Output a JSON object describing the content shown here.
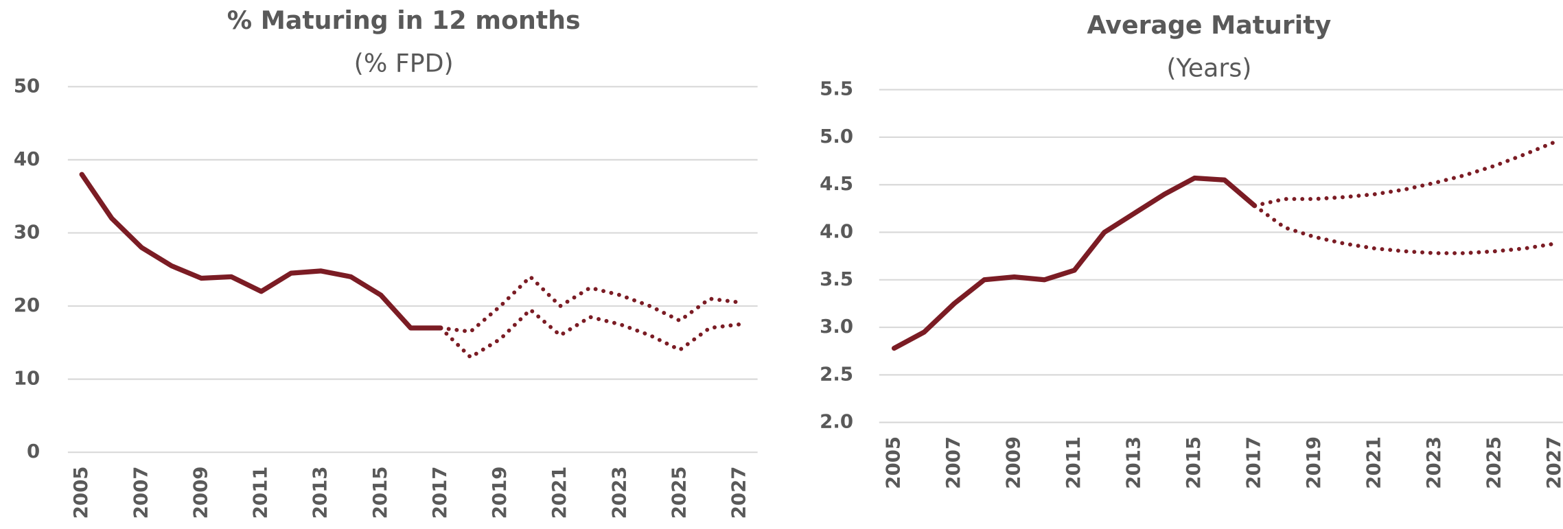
{
  "chart_data": [
    {
      "type": "line",
      "title": "% Maturing in 12 months",
      "subtitle": "(% FPD)",
      "x": [
        2005,
        2006,
        2007,
        2008,
        2009,
        2010,
        2011,
        2012,
        2013,
        2014,
        2015,
        2016,
        2017,
        2018,
        2019,
        2020,
        2021,
        2022,
        2023,
        2024,
        2025,
        2026,
        2027
      ],
      "series": [
        {
          "color": "#7b1c24",
          "style": "solid",
          "values": [
            38,
            32,
            28,
            25.5,
            23.8,
            24,
            22,
            24.5,
            24.8,
            24,
            21.5,
            17,
            17,
            null,
            null,
            null,
            null,
            null,
            null,
            null,
            null,
            null,
            null
          ]
        },
        {
          "color": "#7b1c24",
          "style": "dotted",
          "values": [
            null,
            null,
            null,
            null,
            null,
            null,
            null,
            null,
            null,
            null,
            null,
            null,
            17,
            16.5,
            20,
            24,
            20,
            22.5,
            21.5,
            20,
            18,
            21,
            20.5
          ]
        },
        {
          "color": "#7b1c24",
          "style": "dotted",
          "values": [
            null,
            null,
            null,
            null,
            null,
            null,
            null,
            null,
            null,
            null,
            null,
            null,
            17,
            13,
            15.5,
            19.5,
            16,
            18.5,
            17.5,
            16,
            14,
            17,
            17.5
          ]
        }
      ],
      "xlim": [
        2005,
        2027
      ],
      "xticks": [
        2005,
        2007,
        2009,
        2011,
        2013,
        2015,
        2017,
        2019,
        2021,
        2023,
        2025,
        2027
      ],
      "ylim": [
        0,
        50
      ],
      "yticks": [
        0,
        10,
        20,
        30,
        40,
        50
      ],
      "grid": true
    },
    {
      "type": "line",
      "title": "Average Maturity",
      "subtitle": "(Years)",
      "x": [
        2005,
        2006,
        2007,
        2008,
        2009,
        2010,
        2011,
        2012,
        2013,
        2014,
        2015,
        2016,
        2017,
        2018,
        2019,
        2020,
        2021,
        2022,
        2023,
        2024,
        2025,
        2026,
        2027
      ],
      "series": [
        {
          "color": "#7b1c24",
          "style": "solid",
          "values": [
            2.78,
            2.95,
            3.25,
            3.5,
            3.53,
            3.5,
            3.6,
            4.0,
            4.2,
            4.4,
            4.57,
            4.55,
            4.28,
            null,
            null,
            null,
            null,
            null,
            null,
            null,
            null,
            null,
            null
          ]
        },
        {
          "color": "#7b1c24",
          "style": "dotted",
          "values": [
            null,
            null,
            null,
            null,
            null,
            null,
            null,
            null,
            null,
            null,
            null,
            null,
            4.28,
            4.35,
            4.35,
            4.37,
            4.4,
            4.45,
            4.52,
            4.6,
            4.7,
            4.82,
            4.95
          ]
        },
        {
          "color": "#7b1c24",
          "style": "dotted",
          "values": [
            null,
            null,
            null,
            null,
            null,
            null,
            null,
            null,
            null,
            null,
            null,
            null,
            4.28,
            4.05,
            3.95,
            3.88,
            3.83,
            3.8,
            3.78,
            3.78,
            3.8,
            3.83,
            3.88
          ]
        }
      ],
      "xlim": [
        2005,
        2027
      ],
      "xticks": [
        2005,
        2007,
        2009,
        2011,
        2013,
        2015,
        2017,
        2019,
        2021,
        2023,
        2025,
        2027
      ],
      "ylim": [
        2,
        5.5
      ],
      "yticks": [
        {
          "value": 2,
          "label": "2.0"
        },
        2.5,
        {
          "value": 3,
          "label": "3.0"
        },
        3.5,
        {
          "value": 4,
          "label": "4.0"
        },
        4.5,
        {
          "value": 5,
          "label": "5.0"
        },
        5.5
      ],
      "grid": true
    }
  ]
}
